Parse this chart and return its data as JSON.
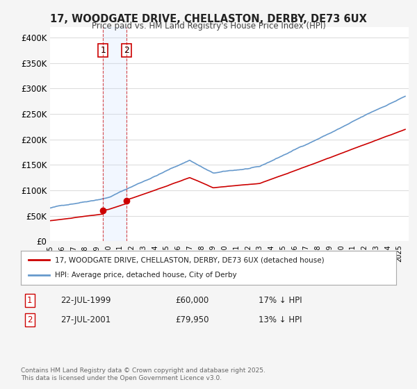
{
  "title": "17, WOODGATE DRIVE, CHELLASTON, DERBY, DE73 6UX",
  "subtitle": "Price paid vs. HM Land Registry's House Price Index (HPI)",
  "ylim": [
    0,
    420000
  ],
  "yticks": [
    0,
    50000,
    100000,
    150000,
    200000,
    250000,
    300000,
    350000,
    400000
  ],
  "ytick_labels": [
    "£0",
    "£50K",
    "£100K",
    "£150K",
    "£200K",
    "£250K",
    "£300K",
    "£350K",
    "£400K"
  ],
  "property_color": "#cc0000",
  "hpi_color": "#6699cc",
  "shade_color": "#cce0ff",
  "transaction1": {
    "date_num": 1999.55,
    "price": 60000,
    "label": "1",
    "date_str": "22-JUL-1999",
    "price_str": "£60,000",
    "hpi_str": "17% ↓ HPI"
  },
  "transaction2": {
    "date_num": 2001.57,
    "price": 79950,
    "label": "2",
    "date_str": "27-JUL-2001",
    "price_str": "£79,950",
    "hpi_str": "13% ↓ HPI"
  },
  "legend1": "17, WOODGATE DRIVE, CHELLASTON, DERBY, DE73 6UX (detached house)",
  "legend2": "HPI: Average price, detached house, City of Derby",
  "footer": "Contains HM Land Registry data © Crown copyright and database right 2025.\nThis data is licensed under the Open Government Licence v3.0.",
  "background_color": "#f5f5f5",
  "plot_background": "#ffffff"
}
